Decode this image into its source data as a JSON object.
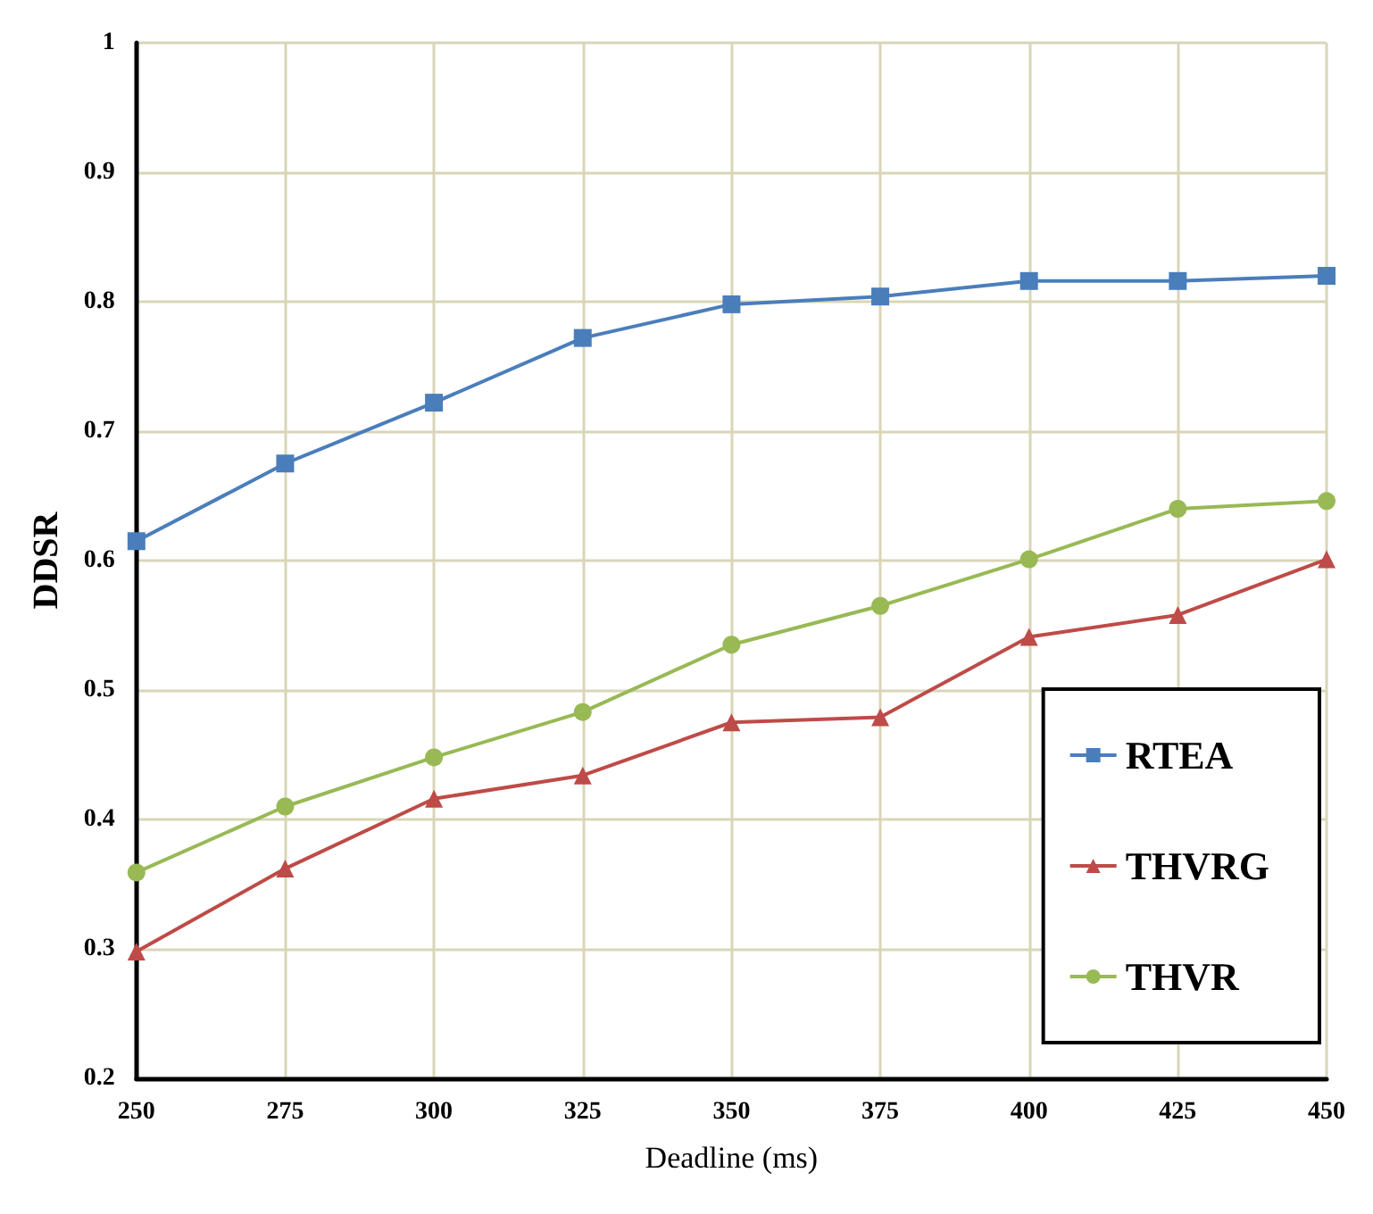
{
  "chart_data": {
    "type": "line",
    "xlabel": "Deadline (ms)",
    "ylabel": "DDSR",
    "x": [
      250,
      275,
      300,
      325,
      350,
      375,
      400,
      425,
      450
    ],
    "xlim": [
      250,
      450
    ],
    "xticks": [
      250,
      275,
      300,
      325,
      350,
      375,
      400,
      425,
      450
    ],
    "ylim": [
      0.2,
      1
    ],
    "yticks": [
      0.2,
      0.3,
      0.4,
      0.5,
      0.6,
      0.7,
      0.8,
      0.9,
      1
    ],
    "grid": true,
    "legend": "bottom right",
    "series": [
      {
        "name": "RTEA",
        "color": "#4a7ebb",
        "marker": "square",
        "values": [
          0.615,
          0.675,
          0.722,
          0.772,
          0.798,
          0.804,
          0.816,
          0.816,
          0.82
        ]
      },
      {
        "name": "THVRG",
        "color": "#be4b48",
        "marker": "triangle",
        "values": [
          0.298,
          0.362,
          0.416,
          0.434,
          0.475,
          0.479,
          0.541,
          0.558,
          0.601
        ]
      },
      {
        "name": "THVR",
        "color": "#98b954",
        "marker": "circle",
        "values": [
          0.359,
          0.41,
          0.448,
          0.483,
          0.535,
          0.565,
          0.601,
          0.64,
          0.646
        ]
      }
    ]
  }
}
